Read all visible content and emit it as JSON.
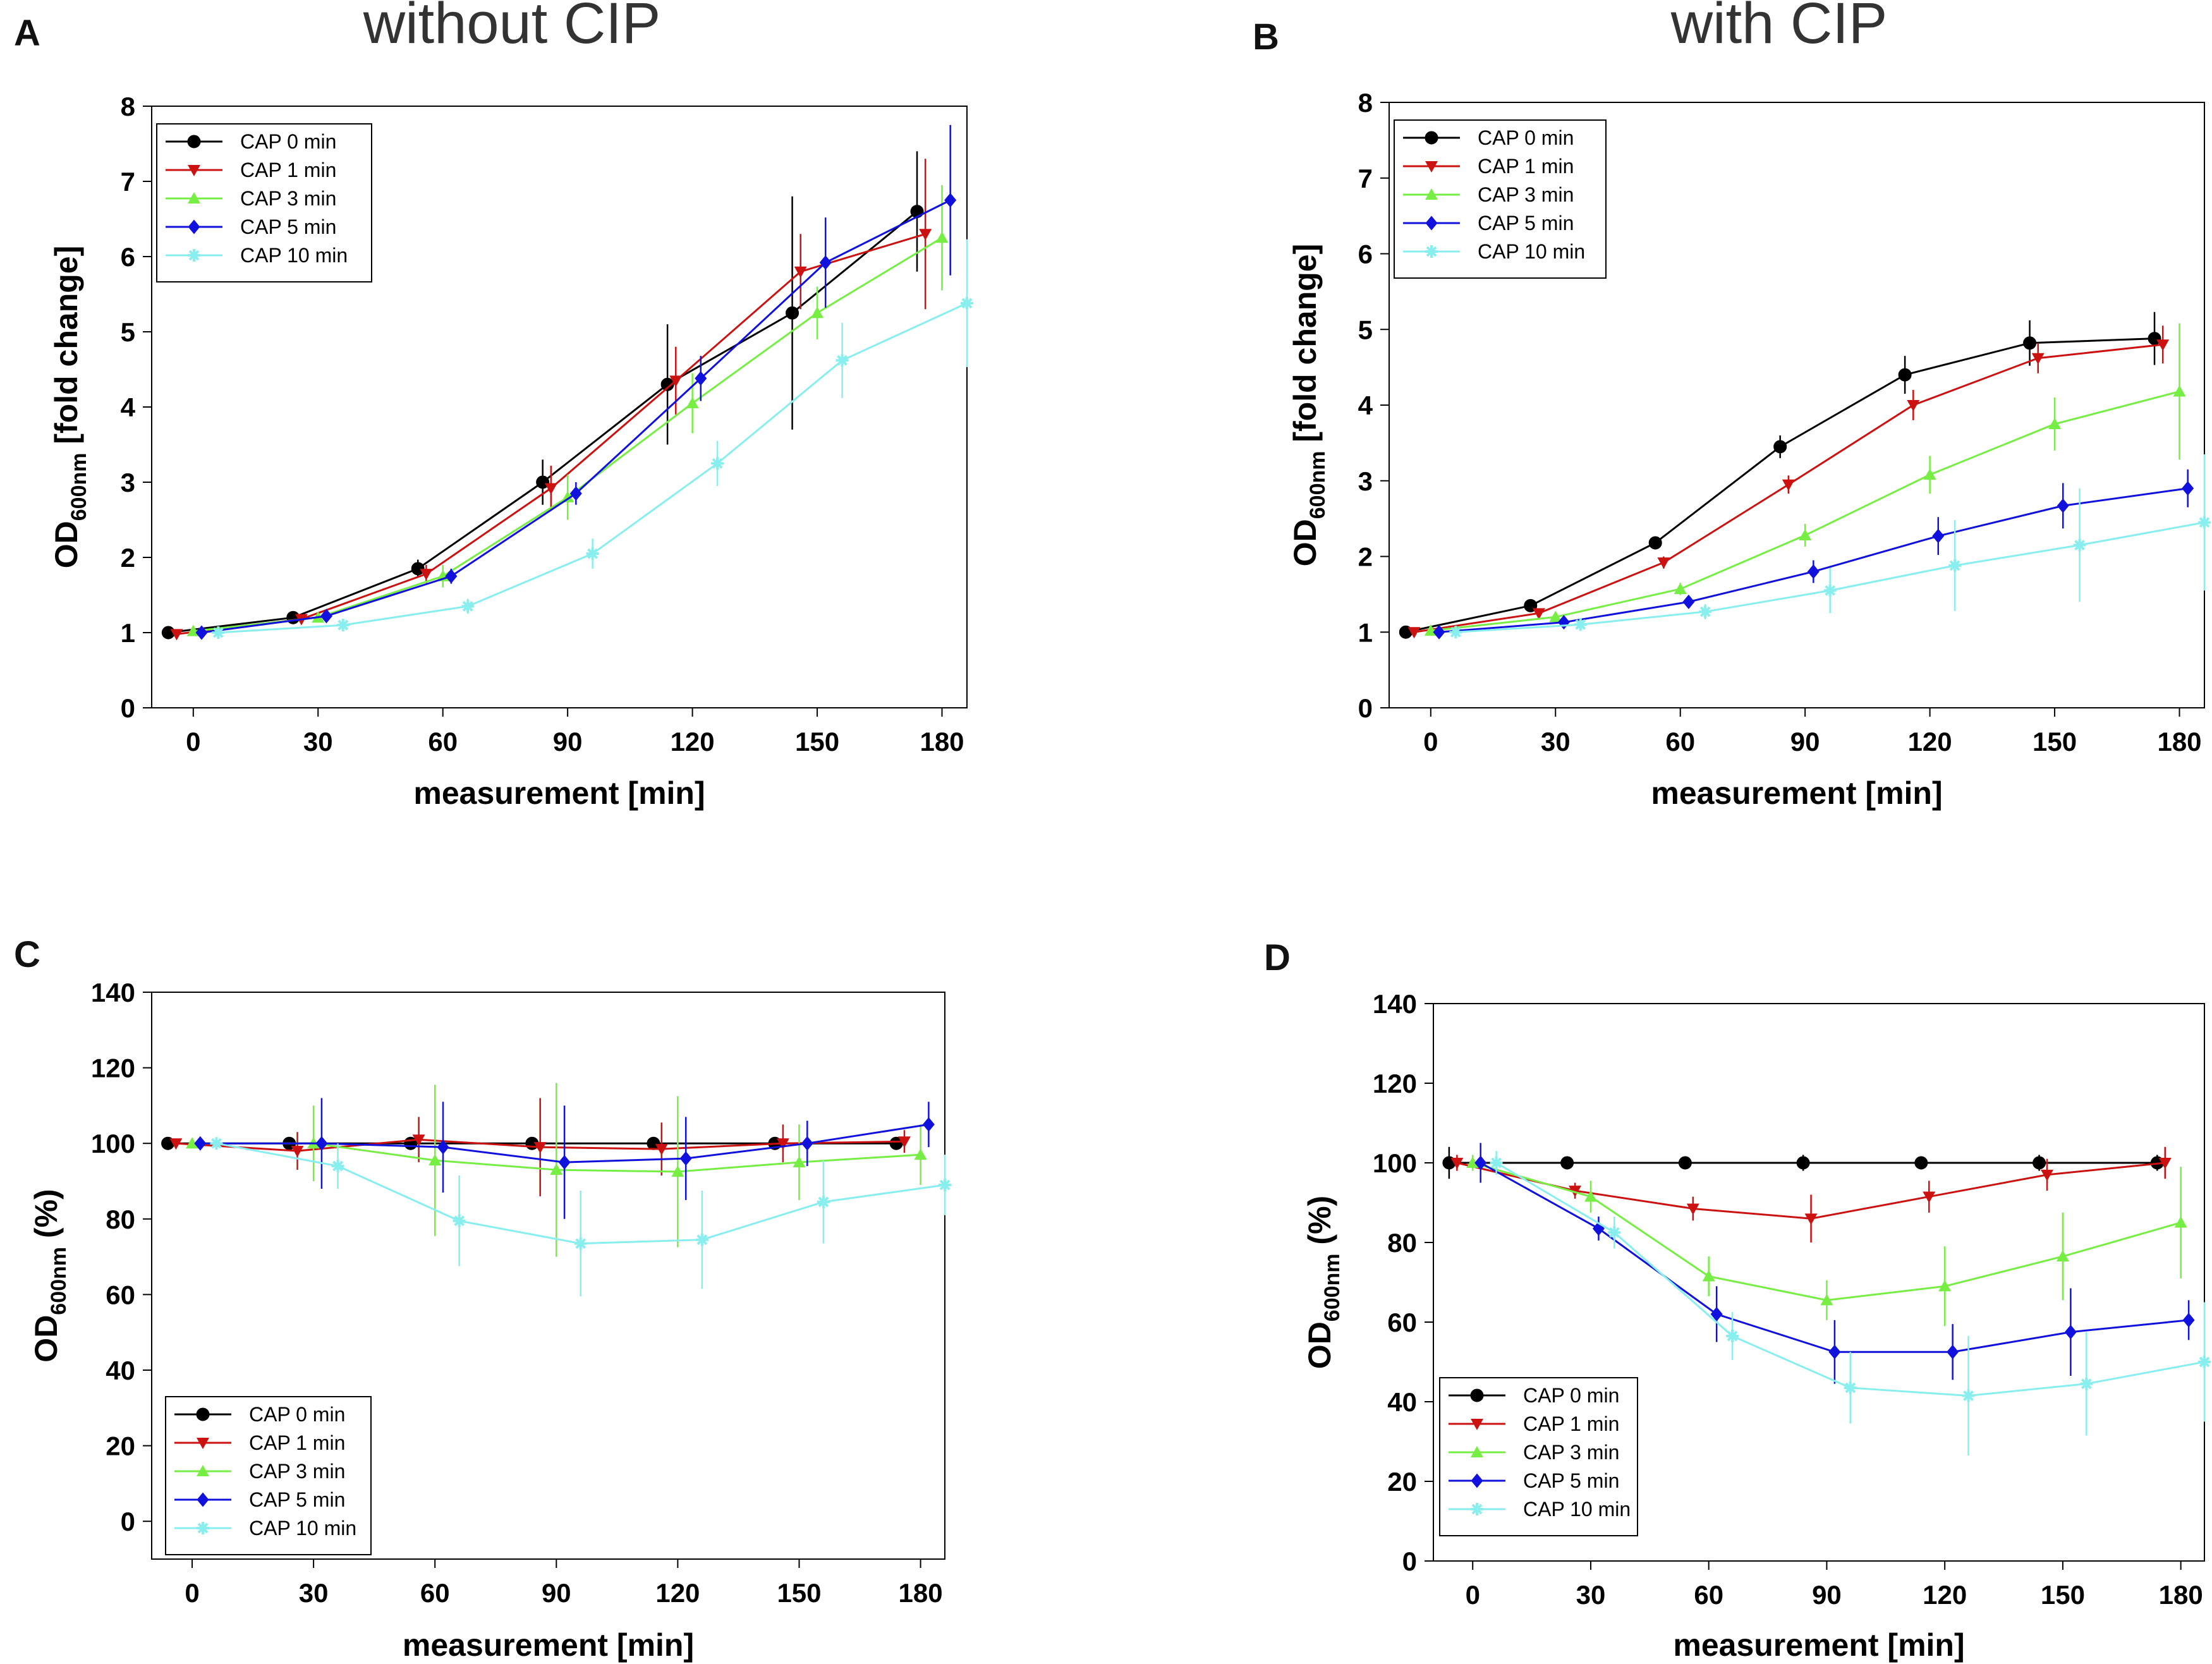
{
  "figure": {
    "column_titles": [
      "without CIP",
      "with CIP"
    ]
  },
  "chart_data": [
    {
      "panel": "A",
      "type": "line",
      "title": "without CIP",
      "xlabel": "measurement [min]",
      "ylabel": "OD600nm [fold change]",
      "ylabel_main": "OD",
      "ylabel_sub": "600nm",
      "ylabel_rest": " [fold change]",
      "xlim": [
        -10,
        186
      ],
      "ylim": [
        0,
        8
      ],
      "xticks": [
        0,
        30,
        60,
        90,
        120,
        150,
        180
      ],
      "yticks": [
        0,
        1,
        2,
        3,
        4,
        5,
        6,
        7,
        8
      ],
      "legend_position": "top-left",
      "series": [
        {
          "name": "CAP 0 min",
          "color": "#000000",
          "marker": "circle",
          "x": [
            -6,
            24,
            54,
            84,
            114,
            144,
            174
          ],
          "y": [
            1.0,
            1.2,
            1.85,
            3.0,
            4.3,
            5.25,
            6.6
          ],
          "err": [
            0.03,
            0.05,
            0.12,
            0.3,
            0.8,
            1.55,
            0.8
          ]
        },
        {
          "name": "CAP 1 min",
          "color": "#cc1111",
          "marker": "triangle-down",
          "x": [
            -4,
            26,
            56,
            86,
            116,
            146,
            176
          ],
          "y": [
            0.98,
            1.18,
            1.78,
            2.92,
            4.35,
            5.8,
            6.3
          ],
          "err": [
            0.03,
            0.05,
            0.12,
            0.3,
            0.45,
            0.5,
            1.0
          ]
        },
        {
          "name": "CAP 3 min",
          "color": "#77ee44",
          "marker": "triangle-up",
          "x": [
            0,
            30,
            60,
            90,
            120,
            150,
            180
          ],
          "y": [
            1.02,
            1.2,
            1.75,
            2.8,
            4.05,
            5.25,
            6.25
          ],
          "err": [
            0.05,
            0.05,
            0.15,
            0.3,
            0.4,
            0.35,
            0.7
          ]
        },
        {
          "name": "CAP 5 min",
          "color": "#1111dd",
          "marker": "diamond",
          "x": [
            2,
            32,
            62,
            92,
            122,
            152,
            182
          ],
          "y": [
            1.0,
            1.22,
            1.75,
            2.85,
            4.38,
            5.92,
            6.75
          ],
          "err": [
            0.03,
            0.05,
            0.1,
            0.15,
            0.3,
            0.6,
            1.0
          ]
        },
        {
          "name": "CAP 10 min",
          "color": "#88eeee",
          "marker": "star",
          "x": [
            6,
            36,
            66,
            96,
            126,
            156,
            186
          ],
          "y": [
            1.0,
            1.1,
            1.35,
            2.05,
            3.25,
            4.62,
            5.38
          ],
          "err": [
            0.03,
            0.05,
            0.1,
            0.2,
            0.3,
            0.5,
            0.85
          ]
        }
      ]
    },
    {
      "panel": "B",
      "type": "line",
      "title": "with CIP",
      "xlabel": "measurement [min]",
      "ylabel": "OD600nm [fold change]",
      "ylabel_main": "OD",
      "ylabel_sub": "600nm",
      "ylabel_rest": " [fold change]",
      "xlim": [
        -10,
        186
      ],
      "ylim": [
        0,
        8
      ],
      "xticks": [
        0,
        30,
        60,
        90,
        120,
        150,
        180
      ],
      "yticks": [
        0,
        1,
        2,
        3,
        4,
        5,
        6,
        7,
        8
      ],
      "legend_position": "top-left",
      "series": [
        {
          "name": "CAP 0 min",
          "color": "#000000",
          "marker": "circle",
          "x": [
            -6,
            24,
            54,
            84,
            114,
            144,
            174
          ],
          "y": [
            1.0,
            1.35,
            2.18,
            3.45,
            4.4,
            4.82,
            4.88
          ],
          "err": [
            0.03,
            0.05,
            0.08,
            0.15,
            0.25,
            0.3,
            0.35
          ]
        },
        {
          "name": "CAP 1 min",
          "color": "#cc1111",
          "marker": "triangle-down",
          "x": [
            -4,
            26,
            56,
            86,
            116,
            146,
            176
          ],
          "y": [
            1.0,
            1.25,
            1.92,
            2.95,
            4.0,
            4.62,
            4.8
          ],
          "err": [
            0.03,
            0.05,
            0.08,
            0.12,
            0.2,
            0.2,
            0.25
          ]
        },
        {
          "name": "CAP 3 min",
          "color": "#77ee44",
          "marker": "triangle-up",
          "x": [
            0,
            30,
            60,
            90,
            120,
            150,
            180
          ],
          "y": [
            1.02,
            1.2,
            1.57,
            2.28,
            3.08,
            3.75,
            4.18
          ],
          "err": [
            0.03,
            0.05,
            0.08,
            0.15,
            0.25,
            0.35,
            0.9
          ]
        },
        {
          "name": "CAP 5 min",
          "color": "#1111dd",
          "marker": "diamond",
          "x": [
            2,
            32,
            62,
            92,
            122,
            152,
            182
          ],
          "y": [
            1.0,
            1.13,
            1.4,
            1.8,
            2.27,
            2.67,
            2.9
          ],
          "err": [
            0.03,
            0.05,
            0.08,
            0.15,
            0.25,
            0.3,
            0.25
          ]
        },
        {
          "name": "CAP 10 min",
          "color": "#88eeee",
          "marker": "star",
          "x": [
            6,
            36,
            66,
            96,
            126,
            156,
            186
          ],
          "y": [
            1.0,
            1.1,
            1.27,
            1.55,
            1.88,
            2.15,
            2.45
          ],
          "err": [
            0.03,
            0.05,
            0.1,
            0.3,
            0.6,
            0.75,
            0.9
          ]
        }
      ]
    },
    {
      "panel": "C",
      "type": "line",
      "title": "",
      "xlabel": "measurement [min]",
      "ylabel": "OD600nm (%)",
      "ylabel_main": "OD",
      "ylabel_sub": "600nm",
      "ylabel_rest": " (%)",
      "xlim": [
        -10,
        186
      ],
      "ylim": [
        -10,
        140
      ],
      "ylim_display_ticks_from": 0,
      "xticks": [
        0,
        30,
        60,
        90,
        120,
        150,
        180
      ],
      "yticks": [
        0,
        20,
        40,
        60,
        80,
        100,
        120,
        140
      ],
      "legend_position": "bottom-left",
      "series": [
        {
          "name": "CAP 0 min",
          "color": "#000000",
          "marker": "circle",
          "x": [
            -6,
            24,
            54,
            84,
            114,
            144,
            174
          ],
          "y": [
            100,
            100,
            100,
            100,
            100,
            100,
            100
          ],
          "err": [
            1,
            1,
            1,
            1,
            1,
            1,
            1
          ]
        },
        {
          "name": "CAP 1 min",
          "color": "#cc1111",
          "marker": "triangle-down",
          "x": [
            -4,
            26,
            56,
            86,
            116,
            146,
            176
          ],
          "y": [
            100,
            98,
            101,
            99,
            98.5,
            100,
            100.5
          ],
          "err": [
            1,
            5,
            6,
            13,
            7,
            5,
            3
          ]
        },
        {
          "name": "CAP 3 min",
          "color": "#77ee44",
          "marker": "triangle-up",
          "x": [
            0,
            30,
            60,
            90,
            120,
            150,
            180
          ],
          "y": [
            100,
            100,
            95.5,
            93,
            92.5,
            95,
            97
          ],
          "err": [
            1,
            10,
            20,
            23,
            20,
            10,
            8
          ]
        },
        {
          "name": "CAP 5 min",
          "color": "#1111dd",
          "marker": "diamond",
          "x": [
            2,
            32,
            62,
            92,
            122,
            152,
            182
          ],
          "y": [
            100,
            100,
            99,
            95,
            96,
            100,
            105
          ],
          "err": [
            1,
            12,
            12,
            15,
            11,
            6,
            6
          ]
        },
        {
          "name": "CAP 10 min",
          "color": "#88eeee",
          "marker": "star",
          "x": [
            6,
            36,
            66,
            96,
            126,
            156,
            186
          ],
          "y": [
            100,
            94,
            79.5,
            73.5,
            74.5,
            84.5,
            89
          ],
          "err": [
            1,
            6,
            12,
            14,
            13,
            11,
            8
          ]
        }
      ]
    },
    {
      "panel": "D",
      "type": "line",
      "title": "",
      "xlabel": "measurement [min]",
      "ylabel": "OD600nm (%)",
      "ylabel_main": "OD",
      "ylabel_sub": "600nm",
      "ylabel_rest": " (%)",
      "xlim": [
        -10,
        186
      ],
      "ylim": [
        0,
        140
      ],
      "xticks": [
        0,
        30,
        60,
        90,
        120,
        150,
        180
      ],
      "yticks": [
        0,
        20,
        40,
        60,
        80,
        100,
        120,
        140
      ],
      "legend_position": "bottom-left",
      "series": [
        {
          "name": "CAP 0 min",
          "color": "#000000",
          "marker": "circle",
          "x": [
            -6,
            24,
            54,
            84,
            114,
            144,
            174
          ],
          "y": [
            100,
            100,
            100,
            100,
            100,
            100,
            100
          ],
          "err": [
            4,
            1,
            1,
            2,
            1,
            2,
            2
          ]
        },
        {
          "name": "CAP 1 min",
          "color": "#cc1111",
          "marker": "triangle-down",
          "x": [
            -4,
            26,
            56,
            86,
            116,
            146,
            176
          ],
          "y": [
            100,
            93,
            88.5,
            86,
            91.5,
            97,
            100
          ],
          "err": [
            2,
            2,
            3,
            6,
            4,
            4,
            4
          ]
        },
        {
          "name": "CAP 3 min",
          "color": "#77ee44",
          "marker": "triangle-up",
          "x": [
            0,
            30,
            60,
            90,
            120,
            150,
            180
          ],
          "y": [
            100,
            91.5,
            71.5,
            65.5,
            69,
            76.5,
            85
          ],
          "err": [
            2,
            4,
            5,
            5,
            10,
            11,
            14
          ]
        },
        {
          "name": "CAP 5 min",
          "color": "#1111dd",
          "marker": "diamond",
          "x": [
            2,
            32,
            62,
            92,
            122,
            152,
            182
          ],
          "y": [
            100,
            83.5,
            62,
            52.5,
            52.5,
            57.5,
            60.5
          ],
          "err": [
            5,
            3,
            7,
            8,
            7,
            11,
            5
          ]
        },
        {
          "name": "CAP 10 min",
          "color": "#88eeee",
          "marker": "star",
          "x": [
            6,
            36,
            66,
            96,
            126,
            156,
            186
          ],
          "y": [
            100,
            82.5,
            56.5,
            43.5,
            41.5,
            44.5,
            50
          ],
          "err": [
            3,
            4,
            6,
            9,
            15,
            13,
            15
          ]
        }
      ]
    }
  ]
}
